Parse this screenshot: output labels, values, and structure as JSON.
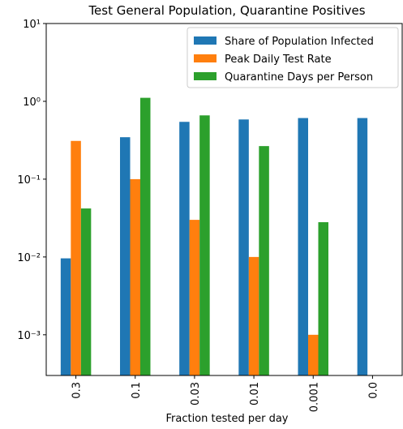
{
  "chart_data": {
    "type": "bar",
    "title": "Test General Population, Quarantine Positives",
    "xlabel": "Fraction tested per day",
    "categories": [
      "0.3",
      "0.1",
      "0.03",
      "0.01",
      "0.001",
      "0.0"
    ],
    "series": [
      {
        "name": "Share of Population Infected",
        "color": "#1f77b4",
        "values": [
          0.0096,
          0.346,
          0.545,
          0.585,
          0.61,
          0.61
        ]
      },
      {
        "name": "Peak Daily Test Rate",
        "color": "#ff7f0e",
        "values": [
          0.31,
          0.1,
          0.03,
          0.01,
          0.001,
          0
        ]
      },
      {
        "name": "Quarantine Days per Person",
        "color": "#2ca02c",
        "values": [
          0.042,
          1.11,
          0.66,
          0.266,
          0.028,
          0
        ]
      }
    ],
    "log_y": true,
    "ylim": [
      0.0003,
      10
    ],
    "yticks": [
      {
        "value": 10,
        "label": "10¹"
      },
      {
        "value": 1,
        "label": "10⁰"
      },
      {
        "value": 0.1,
        "label": "10⁻¹"
      },
      {
        "value": 0.01,
        "label": "10⁻²"
      },
      {
        "value": 0.001,
        "label": "10⁻³"
      }
    ],
    "legend": "upper right"
  }
}
